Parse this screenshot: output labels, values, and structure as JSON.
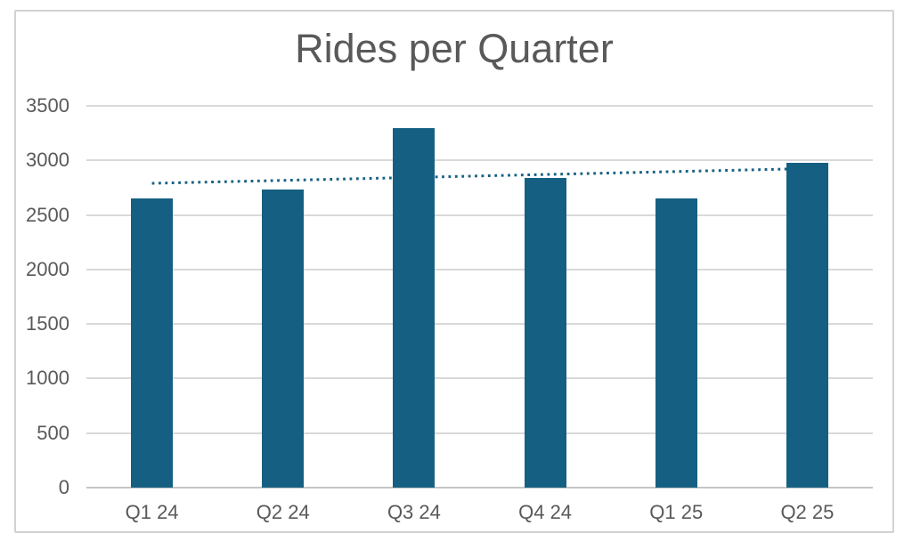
{
  "chart_data": {
    "type": "bar",
    "title": "Rides per Quarter",
    "categories": [
      "Q1 24",
      "Q2 24",
      "Q3 24",
      "Q4 24",
      "Q1 25",
      "Q2 25"
    ],
    "values": [
      2650,
      2730,
      3300,
      2840,
      2650,
      2980
    ],
    "xlabel": "",
    "ylabel": "",
    "ylim": [
      0,
      3500
    ],
    "ytick_interval": 500,
    "yticks": [
      0,
      500,
      1000,
      1500,
      2000,
      2500,
      3000,
      3500
    ],
    "grid": true,
    "legend": false,
    "trendline": {
      "type": "linear",
      "dash_style": "dotted",
      "start_value": 2790,
      "end_value": 2925
    },
    "colors": {
      "bar": "#156082",
      "trendline": "#156082",
      "title_text": "#595959",
      "axis_text": "#595959",
      "gridline": "#d9d9d9",
      "axis_line": "#c6c6c6",
      "border": "#d2d2d2",
      "background": "#ffffff"
    }
  }
}
